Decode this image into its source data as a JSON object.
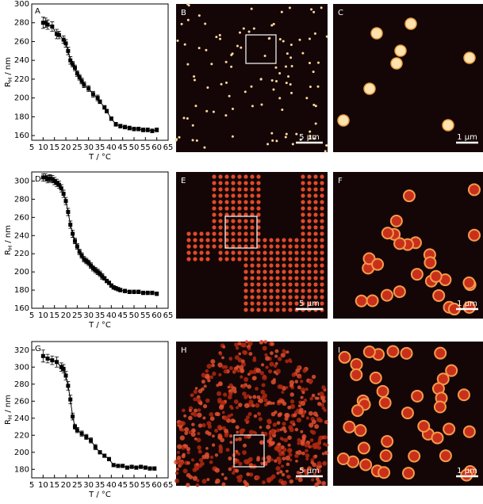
{
  "chart_data": [
    {
      "type": "line",
      "panel": "A",
      "xlabel": "T  /  °C",
      "ylabel": "R",
      "ylabel_sub": "H",
      "ylabel_unit": "  /  nm",
      "color": "#000000",
      "xlim": [
        5,
        65
      ],
      "xticks": [
        5,
        10,
        15,
        20,
        25,
        30,
        35,
        40,
        45,
        50,
        55,
        60,
        65
      ],
      "ylim": [
        155,
        300
      ],
      "yticks": [
        160,
        180,
        200,
        220,
        240,
        260,
        280,
        300
      ],
      "x": [
        10,
        11,
        12,
        14,
        16,
        17,
        19,
        20,
        21,
        22,
        23,
        24,
        25,
        26,
        27,
        28,
        30,
        32,
        34,
        35,
        37,
        38,
        40,
        42,
        44,
        46,
        48,
        50,
        52,
        54,
        56,
        58,
        60
      ],
      "values": [
        280,
        280,
        278,
        276,
        268,
        267,
        262,
        258,
        250,
        240,
        236,
        232,
        226,
        222,
        218,
        214,
        210,
        204,
        200,
        196,
        190,
        186,
        178,
        172,
        170,
        169,
        168,
        167,
        167,
        166,
        166,
        165,
        166
      ],
      "errors": [
        6,
        5,
        5,
        5,
        5,
        4,
        4,
        4,
        4,
        4,
        3,
        3,
        3,
        3,
        3,
        3,
        3,
        3,
        3,
        2,
        2,
        2,
        2,
        2,
        2,
        2,
        2,
        2,
        2,
        2,
        2,
        2,
        2
      ]
    },
    {
      "type": "line",
      "panel": "D",
      "xlabel": "T  /  °C",
      "ylabel": "R",
      "ylabel_sub": "H",
      "ylabel_unit": "  /  nm",
      "color": "#000000",
      "xlim": [
        5,
        65
      ],
      "xticks": [
        5,
        10,
        15,
        20,
        25,
        30,
        35,
        40,
        45,
        50,
        55,
        60,
        65
      ],
      "ylim": [
        160,
        310
      ],
      "yticks": [
        160,
        180,
        200,
        220,
        240,
        260,
        280,
        300
      ],
      "x": [
        10,
        11,
        12,
        13,
        14,
        15,
        16,
        17,
        18,
        19,
        20,
        21,
        22,
        23,
        24,
        25,
        26,
        27,
        28,
        29,
        30,
        31,
        32,
        33,
        34,
        35,
        36,
        37,
        38,
        39,
        40,
        41,
        42,
        43,
        44,
        46,
        48,
        50,
        52,
        54,
        56,
        58,
        60
      ],
      "values": [
        304,
        304,
        302,
        303,
        302,
        300,
        298,
        296,
        292,
        286,
        278,
        266,
        252,
        242,
        234,
        228,
        222,
        218,
        214,
        212,
        210,
        207,
        204,
        202,
        200,
        198,
        195,
        193,
        190,
        188,
        185,
        183,
        182,
        181,
        180,
        179,
        178,
        178,
        178,
        177,
        177,
        177,
        176
      ],
      "errors": [
        4,
        4,
        4,
        4,
        4,
        4,
        4,
        4,
        4,
        4,
        4,
        4,
        4,
        4,
        3,
        3,
        3,
        3,
        3,
        3,
        3,
        3,
        3,
        3,
        3,
        3,
        3,
        2,
        2,
        2,
        2,
        2,
        2,
        2,
        2,
        2,
        2,
        2,
        2,
        2,
        2,
        2,
        2
      ]
    },
    {
      "type": "line",
      "panel": "G",
      "xlabel": "T  /  °C",
      "ylabel": "R",
      "ylabel_sub": "H",
      "ylabel_unit": "  /  nm",
      "color": "#000000",
      "xlim": [
        5,
        65
      ],
      "xticks": [
        5,
        10,
        15,
        20,
        25,
        30,
        35,
        40,
        45,
        50,
        55,
        60,
        65
      ],
      "ylim": [
        170,
        330
      ],
      "yticks": [
        180,
        200,
        220,
        240,
        260,
        280,
        300,
        320
      ],
      "x": [
        10,
        12,
        14,
        16,
        18,
        19,
        20,
        21,
        22,
        23,
        24,
        25,
        27,
        29,
        31,
        33,
        35,
        37,
        39,
        41,
        43,
        45,
        47,
        49,
        51,
        53,
        55,
        57,
        59
      ],
      "values": [
        313,
        310,
        308,
        306,
        300,
        298,
        290,
        278,
        262,
        242,
        230,
        226,
        222,
        218,
        214,
        206,
        200,
        196,
        192,
        185,
        184,
        184,
        182,
        183,
        182,
        183,
        182,
        181,
        181
      ],
      "errors": [
        7,
        5,
        5,
        6,
        5,
        5,
        5,
        5,
        5,
        4,
        3,
        3,
        3,
        3,
        3,
        3,
        2,
        2,
        2,
        2,
        2,
        2,
        2,
        2,
        2,
        2,
        2,
        2,
        2
      ]
    }
  ],
  "images": [
    {
      "panel": "B",
      "scale": "5 µm"
    },
    {
      "panel": "C",
      "scale": "1 µm"
    },
    {
      "panel": "E",
      "scale": "5 µm"
    },
    {
      "panel": "F",
      "scale": "1 µm"
    },
    {
      "panel": "H",
      "scale": "5 µm"
    },
    {
      "panel": "I",
      "scale": "1 µm"
    }
  ]
}
